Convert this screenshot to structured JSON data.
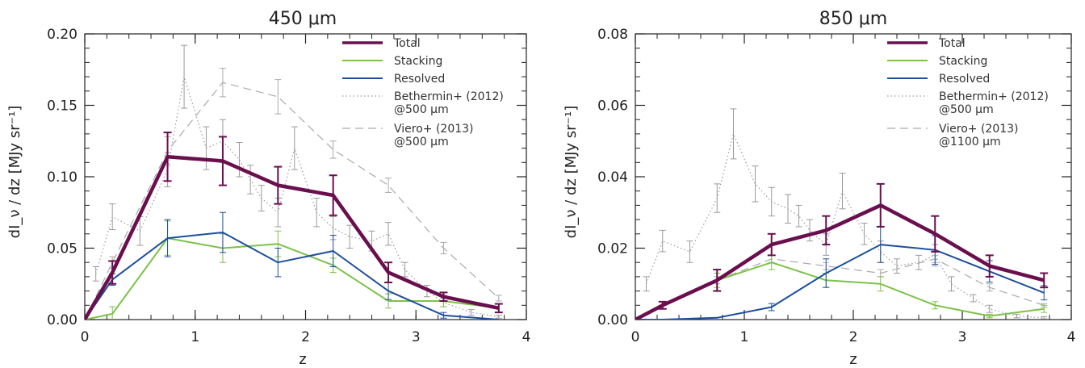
{
  "chart_data": [
    {
      "type": "line",
      "title": "450 μm",
      "xlabel": "z",
      "ylabel": "dI_ν / dz [MJy sr⁻¹]",
      "xlim": [
        0,
        4
      ],
      "ylim": [
        0,
        0.2
      ],
      "xticks": [
        "0",
        "1",
        "2",
        "3",
        "4"
      ],
      "yticks": [
        "0.00",
        "0.05",
        "0.10",
        "0.15",
        "0.20"
      ],
      "series": [
        {
          "name": "Total",
          "color": "#6a0f4e",
          "style": "solid",
          "width": 4.5,
          "x": [
            0,
            0.25,
            0.75,
            1.25,
            1.75,
            2.25,
            2.75,
            3.25,
            3.75
          ],
          "y": [
            0,
            0.033,
            0.114,
            0.111,
            0.094,
            0.087,
            0.033,
            0.016,
            0.008
          ],
          "err": [
            0,
            0.008,
            0.017,
            0.017,
            0.013,
            0.014,
            0.007,
            0.003,
            0.003
          ]
        },
        {
          "name": "Stacking",
          "color": "#7cc247",
          "style": "solid",
          "width": 2,
          "x": [
            0,
            0.25,
            0.75,
            1.25,
            1.75,
            2.25,
            2.75,
            3.25,
            3.75
          ],
          "y": [
            0,
            0.004,
            0.057,
            0.05,
            0.053,
            0.038,
            0.013,
            0.013,
            0.008
          ],
          "err": [
            0,
            0.005,
            0.012,
            0.01,
            0.009,
            0.005,
            0.005,
            0.004,
            0.003
          ]
        },
        {
          "name": "Resolved",
          "color": "#1d4f9c",
          "style": "solid",
          "width": 2,
          "x": [
            0,
            0.25,
            0.75,
            1.25,
            1.75,
            2.25,
            2.75,
            3.25,
            3.75
          ],
          "y": [
            0,
            0.028,
            0.057,
            0.061,
            0.04,
            0.048,
            0.02,
            0.003,
            0
          ],
          "err": [
            0,
            0.004,
            0.013,
            0.014,
            0.01,
            0.011,
            0.006,
            0.002,
            0
          ]
        },
        {
          "name": "Bethermin+ (2012)",
          "name2": "@500 μm",
          "color": "#9a9a9a",
          "style": "dotted",
          "width": 1.2,
          "x": [
            0.1,
            0.25,
            0.5,
            0.75,
            0.9,
            1.1,
            1.25,
            1.4,
            1.5,
            1.6,
            1.75,
            1.9,
            2.1,
            2.25,
            2.4,
            2.6,
            2.75,
            2.9,
            3.1,
            3.25,
            3.5,
            3.75
          ],
          "y": [
            0.032,
            0.072,
            0.062,
            0.105,
            0.17,
            0.12,
            0.125,
            0.112,
            0.098,
            0.085,
            0.075,
            0.12,
            0.075,
            0.064,
            0.058,
            0.055,
            0.06,
            0.035,
            0.02,
            0.012,
            0.005,
            0.002
          ],
          "err": [
            0.005,
            0.009,
            0.01,
            0.012,
            0.022,
            0.015,
            0.015,
            0.012,
            0.01,
            0.009,
            0.01,
            0.015,
            0.01,
            0.008,
            0.008,
            0.007,
            0.008,
            0.005,
            0.004,
            0.003,
            0.002,
            0.001
          ]
        },
        {
          "name": "Viero+ (2013)",
          "name2": "@500 μm",
          "color": "#aaaaaa",
          "style": "dashed",
          "width": 1.2,
          "x": [
            0,
            0.25,
            0.75,
            1.25,
            1.75,
            2.25,
            2.75,
            3.25,
            3.75
          ],
          "y": [
            0,
            0.04,
            0.118,
            0.166,
            0.156,
            0.119,
            0.094,
            0.05,
            0.015
          ],
          "err": [
            0,
            0.004,
            0.01,
            0.01,
            0.012,
            0.006,
            0.005,
            0.004,
            0.002
          ]
        }
      ]
    },
    {
      "type": "line",
      "title": "850 μm",
      "xlabel": "z",
      "ylabel": "dI_ν / dz [MJy sr⁻¹]",
      "xlim": [
        0,
        4
      ],
      "ylim": [
        0,
        0.08
      ],
      "xticks": [
        "0",
        "1",
        "2",
        "3",
        "4"
      ],
      "yticks": [
        "0.00",
        "0.02",
        "0.04",
        "0.06",
        "0.08"
      ],
      "series": [
        {
          "name": "Total",
          "color": "#6a0f4e",
          "style": "solid",
          "width": 4.5,
          "x": [
            0,
            0.25,
            0.75,
            1.25,
            1.75,
            2.25,
            2.75,
            3.25,
            3.75
          ],
          "y": [
            0,
            0.004,
            0.011,
            0.021,
            0.025,
            0.032,
            0.024,
            0.015,
            0.011
          ],
          "err": [
            0,
            0.001,
            0.003,
            0.003,
            0.004,
            0.006,
            0.005,
            0.003,
            0.002
          ]
        },
        {
          "name": "Stacking",
          "color": "#7cc247",
          "style": "solid",
          "width": 2,
          "x": [
            0,
            0.25,
            0.75,
            1.25,
            1.75,
            2.25,
            2.75,
            3.25,
            3.75
          ],
          "y": [
            0,
            0.004,
            0.011,
            0.016,
            0.011,
            0.01,
            0.004,
            0.001,
            0.003
          ],
          "err": [
            0,
            0.001,
            0.002,
            0.002,
            0.002,
            0.002,
            0.001,
            0.0005,
            0.001
          ]
        },
        {
          "name": "Resolved",
          "color": "#1d4f9c",
          "style": "solid",
          "width": 2,
          "x": [
            0,
            0.25,
            0.75,
            1.25,
            1.75,
            2.25,
            2.75,
            3.25,
            3.75
          ],
          "y": [
            0,
            0,
            0.0005,
            0.0035,
            0.013,
            0.021,
            0.0195,
            0.0135,
            0.0075
          ],
          "err": [
            0,
            0,
            0,
            0.001,
            0.004,
            0.005,
            0.004,
            0.003,
            0.002
          ]
        },
        {
          "name": "Bethermin+ (2012)",
          "name2": "@500 μm",
          "color": "#9a9a9a",
          "style": "dotted",
          "width": 1.2,
          "x": [
            0.1,
            0.25,
            0.5,
            0.75,
            0.9,
            1.1,
            1.25,
            1.4,
            1.5,
            1.6,
            1.75,
            1.9,
            2.1,
            2.25,
            2.4,
            2.6,
            2.75,
            2.9,
            3.1,
            3.25,
            3.5,
            3.75
          ],
          "y": [
            0.01,
            0.022,
            0.019,
            0.034,
            0.052,
            0.038,
            0.033,
            0.031,
            0.029,
            0.025,
            0.021,
            0.036,
            0.024,
            0.019,
            0.015,
            0.016,
            0.018,
            0.01,
            0.006,
            0.003,
            0.001,
            0.0005
          ],
          "err": [
            0.002,
            0.003,
            0.003,
            0.004,
            0.007,
            0.005,
            0.004,
            0.004,
            0.003,
            0.003,
            0.003,
            0.005,
            0.003,
            0.003,
            0.002,
            0.002,
            0.003,
            0.002,
            0.001,
            0.001,
            0.0005,
            0.0003
          ]
        },
        {
          "name": "Viero+ (2013)",
          "name2": "@1100 μm",
          "color": "#aaaaaa",
          "style": "dashed",
          "width": 1.2,
          "x": [
            0,
            0.25,
            0.75,
            1.25,
            1.75,
            2.25,
            2.75,
            3.25,
            3.75
          ],
          "y": [
            0,
            0.004,
            0.011,
            0.017,
            0.015,
            0.013,
            0.017,
            0.009,
            0.004
          ],
          "err": [
            0,
            0.001,
            0.001,
            0.001,
            0.001,
            0.001,
            0.001,
            0.001,
            0.0005
          ]
        }
      ]
    }
  ]
}
